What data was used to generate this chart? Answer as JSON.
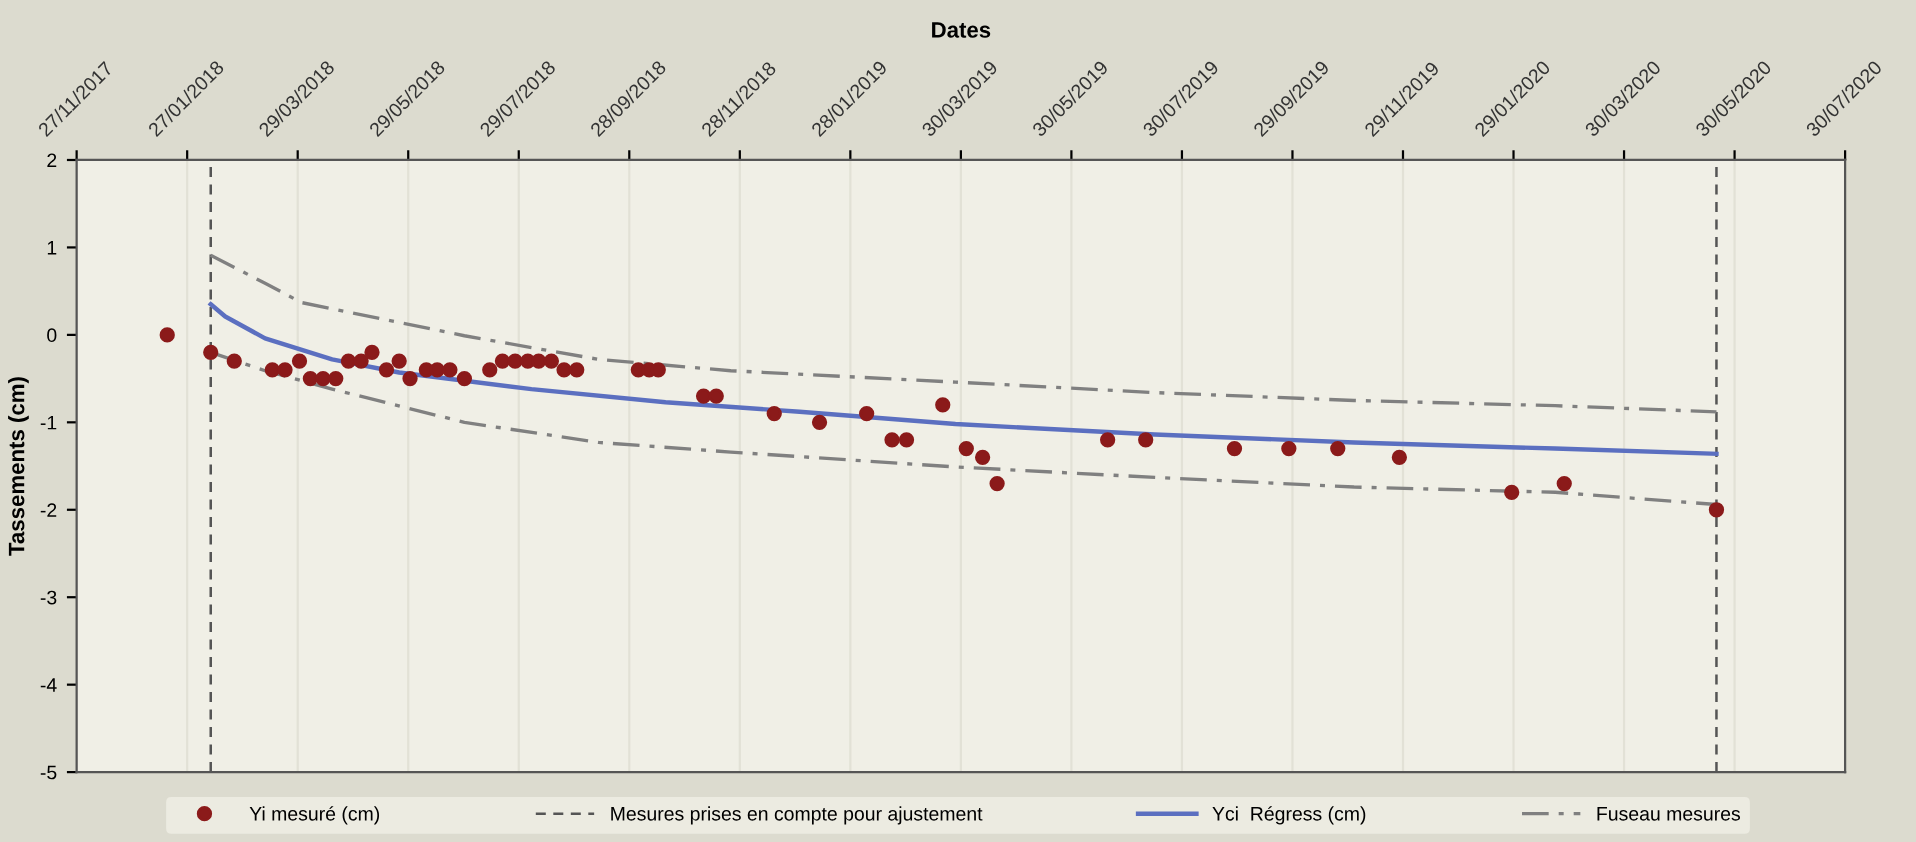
{
  "chart_data": {
    "type": "scatter",
    "xlabel": "Dates",
    "ylabel": "Tassements (cm)",
    "xlim": [
      "2017-11-27",
      "2020-07-30"
    ],
    "ylim": [
      -5,
      2
    ],
    "yticks": [
      -5,
      -4,
      -3,
      -2,
      -1,
      0,
      1,
      2
    ],
    "xticks": [
      {
        "value": "2017-11-27",
        "label": "27/11/2017"
      },
      {
        "value": "2018-01-27",
        "label": "27/01/2018"
      },
      {
        "value": "2018-03-29",
        "label": "29/03/2018"
      },
      {
        "value": "2018-05-29",
        "label": "29/05/2018"
      },
      {
        "value": "2018-07-29",
        "label": "29/07/2018"
      },
      {
        "value": "2018-09-28",
        "label": "28/09/2018"
      },
      {
        "value": "2018-11-28",
        "label": "28/11/2018"
      },
      {
        "value": "2019-01-28",
        "label": "28/01/2019"
      },
      {
        "value": "2019-03-30",
        "label": "30/03/2019"
      },
      {
        "value": "2019-05-30",
        "label": "30/05/2019"
      },
      {
        "value": "2019-07-30",
        "label": "30/07/2019"
      },
      {
        "value": "2019-09-29",
        "label": "29/09/2019"
      },
      {
        "value": "2019-11-29",
        "label": "29/11/2019"
      },
      {
        "value": "2020-01-29",
        "label": "29/01/2020"
      },
      {
        "value": "2020-03-30",
        "label": "30/03/2020"
      },
      {
        "value": "2020-05-30",
        "label": "30/05/2020"
      },
      {
        "value": "2020-07-30",
        "label": "30/07/2020"
      }
    ],
    "grid": "x",
    "legend": "bottom",
    "ref_lines": [
      {
        "axis": "x",
        "value": "2018-02-09",
        "label": "Mesures prises en compte pour ajustement",
        "color": "#555555",
        "line_style": "dashed"
      },
      {
        "axis": "x",
        "value": "2020-05-20",
        "label": null,
        "color": "#555555",
        "line_style": "dashed"
      }
    ],
    "series": [
      {
        "name": "Yi mesuré (cm)",
        "color": "#8b1a1a",
        "marker": "circle",
        "x": [
          "2018-01-16",
          "2018-02-09",
          "2018-02-22",
          "2018-03-15",
          "2018-03-22",
          "2018-03-30",
          "2018-04-05",
          "2018-04-12",
          "2018-04-19",
          "2018-04-26",
          "2018-05-03",
          "2018-05-09",
          "2018-05-17",
          "2018-05-24",
          "2018-05-30",
          "2018-06-08",
          "2018-06-14",
          "2018-06-21",
          "2018-06-29",
          "2018-07-13",
          "2018-07-20",
          "2018-07-27",
          "2018-08-03",
          "2018-08-09",
          "2018-08-16",
          "2018-08-23",
          "2018-08-30",
          "2018-10-03",
          "2018-10-09",
          "2018-10-14",
          "2018-11-08",
          "2018-11-15",
          "2018-12-17",
          "2019-01-11",
          "2019-02-06",
          "2019-02-20",
          "2019-02-28",
          "2019-03-20",
          "2019-04-02",
          "2019-04-11",
          "2019-04-19",
          "2019-06-19",
          "2019-07-10",
          "2019-08-28",
          "2019-09-27",
          "2019-10-24",
          "2019-11-27",
          "2020-01-28",
          "2020-02-26",
          "2020-05-20"
        ],
        "values": [
          0.0,
          -0.2,
          -0.3,
          -0.4,
          -0.4,
          -0.3,
          -0.5,
          -0.5,
          -0.5,
          -0.3,
          -0.3,
          -0.2,
          -0.4,
          -0.3,
          -0.5,
          -0.4,
          -0.4,
          -0.4,
          -0.5,
          -0.4,
          -0.3,
          -0.3,
          -0.3,
          -0.3,
          -0.3,
          -0.4,
          -0.4,
          -0.4,
          -0.4,
          -0.4,
          -0.7,
          -0.7,
          -0.9,
          -1.0,
          -0.9,
          -1.2,
          -1.2,
          -0.8,
          -1.3,
          -1.4,
          -1.7,
          -1.2,
          -1.2,
          -1.3,
          -1.3,
          -1.3,
          -1.4,
          -1.8,
          -1.7,
          -2.0
        ]
      },
      {
        "name": "Yci  Régress (cm)",
        "type": "line",
        "color": "#5b6fc0",
        "line_style": "solid",
        "x": [
          "2018-02-09",
          "2018-02-17",
          "2018-03-11",
          "2018-04-17",
          "2018-05-24",
          "2018-08-05",
          "2018-10-18",
          "2018-12-31",
          "2019-03-27",
          "2019-07-15",
          "2019-11-02",
          "2020-02-21",
          "2020-05-20"
        ],
        "values": [
          0.35,
          0.21,
          -0.04,
          -0.28,
          -0.43,
          -0.62,
          -0.77,
          -0.88,
          -1.02,
          -1.14,
          -1.23,
          -1.3,
          -1.36
        ]
      },
      {
        "name": "Fuseau mesures",
        "type": "line",
        "color": "#808080",
        "line_style": "dashdot",
        "x": [
          "2018-02-09",
          "2018-03-11",
          "2018-03-31",
          "2018-06-29",
          "2018-09-11",
          "2018-11-23",
          "2019-03-27",
          "2019-07-15",
          "2019-11-02",
          "2020-02-21",
          "2020-05-20"
        ],
        "values": [
          0.91,
          0.59,
          0.37,
          -0.01,
          -0.28,
          -0.41,
          -0.54,
          -0.66,
          -0.75,
          -0.81,
          -0.88
        ]
      },
      {
        "type": "line",
        "color": "#808080",
        "line_style": "dashdot",
        "x": [
          "2018-02-09",
          "2018-03-11",
          "2018-04-17",
          "2018-06-29",
          "2018-09-11",
          "2018-11-23",
          "2019-03-27",
          "2019-07-15",
          "2019-11-02",
          "2020-02-21",
          "2020-05-20"
        ],
        "values": [
          -0.2,
          -0.41,
          -0.62,
          -1.0,
          -1.23,
          -1.34,
          -1.51,
          -1.63,
          -1.74,
          -1.8,
          -1.94
        ]
      }
    ]
  }
}
